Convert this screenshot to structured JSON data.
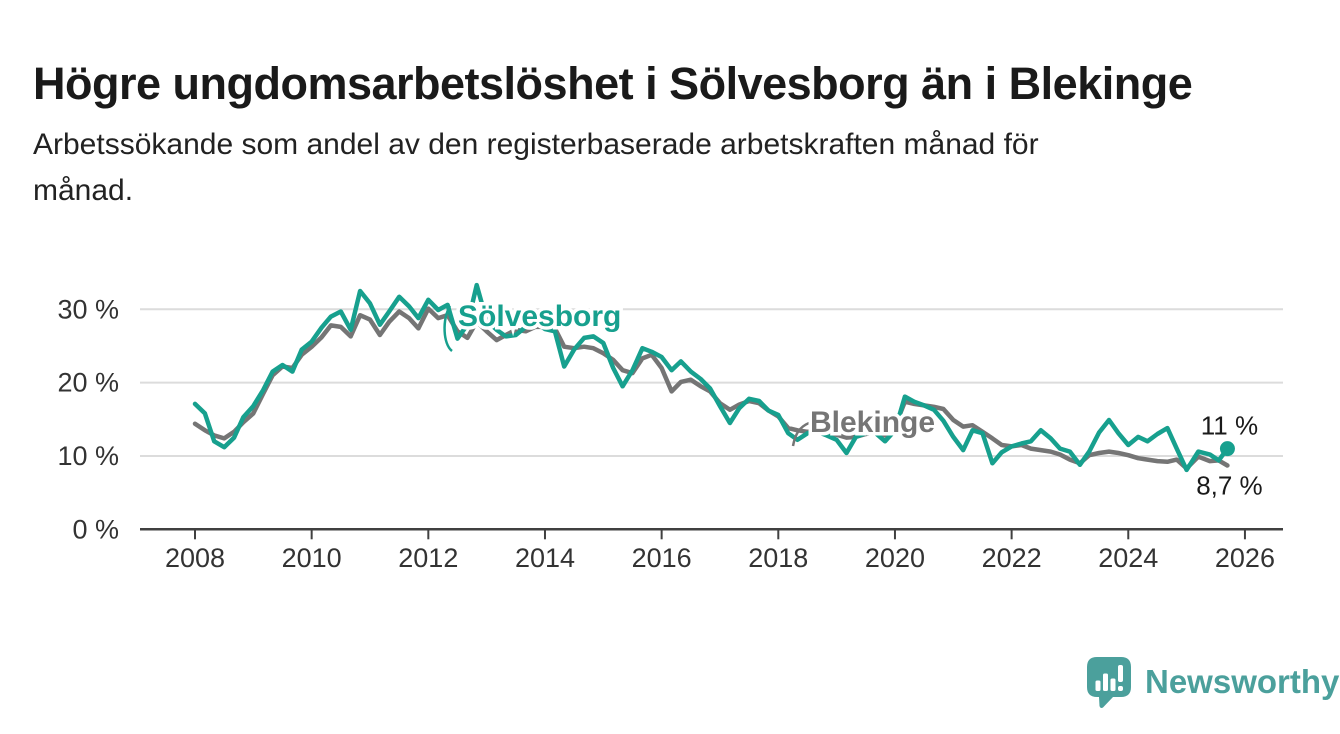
{
  "header": {
    "title": "Högre ungdomsarbetslöshet i Sölvesborg än i Blekinge",
    "subtitle_line1": "Arbetssökande som andel av den registerbaserade arbetskraften månad för",
    "subtitle_line2": "månad."
  },
  "chart": {
    "y_axis": {
      "tick_labels": [
        "30 %",
        "20 %",
        "10 %",
        "0 %"
      ],
      "tick_values": [
        30,
        20,
        10,
        0
      ]
    },
    "x_axis": {
      "tick_labels": [
        "2008",
        "2010",
        "2012",
        "2014",
        "2016",
        "2018",
        "2020",
        "2022",
        "2024",
        "2026"
      ],
      "tick_values": [
        2008,
        2010,
        2012,
        2014,
        2016,
        2018,
        2020,
        2022,
        2024,
        2026
      ]
    },
    "colors": {
      "solvesborg": "#17a08e",
      "blekinge": "#757575",
      "grid": "#dcdcdc",
      "axis": "#404040",
      "tick_text": "#333333",
      "annotation_text": "#1a1a1a"
    }
  },
  "chart_data": {
    "type": "line",
    "title": "Högre ungdomsarbetslöshet i Sölvesborg än i Blekinge",
    "subtitle": "Arbetssökande som andel av den registerbaserade arbetskraften månad för månad.",
    "xlabel": "",
    "ylabel": "",
    "y_unit": "%",
    "ylim": [
      0,
      35
    ],
    "xlim": [
      2007.05,
      2026.65
    ],
    "grid": "horizontal",
    "legend_position": "inline-labels",
    "x": [
      2008.0,
      2008.17,
      2008.33,
      2008.5,
      2008.67,
      2008.83,
      2009.0,
      2009.17,
      2009.33,
      2009.5,
      2009.67,
      2009.83,
      2010.0,
      2010.17,
      2010.33,
      2010.5,
      2010.67,
      2010.83,
      2011.0,
      2011.17,
      2011.33,
      2011.5,
      2011.67,
      2011.83,
      2012.0,
      2012.17,
      2012.33,
      2012.5,
      2012.67,
      2012.83,
      2013.0,
      2013.17,
      2013.33,
      2013.5,
      2013.67,
      2013.83,
      2014.0,
      2014.17,
      2014.33,
      2014.5,
      2014.67,
      2014.83,
      2015.0,
      2015.17,
      2015.33,
      2015.5,
      2015.67,
      2015.83,
      2016.0,
      2016.17,
      2016.33,
      2016.5,
      2016.67,
      2016.83,
      2017.0,
      2017.17,
      2017.33,
      2017.5,
      2017.67,
      2017.83,
      2018.0,
      2018.17,
      2018.33,
      2018.5,
      2018.67,
      2018.83,
      2019.0,
      2019.17,
      2019.33,
      2019.5,
      2019.67,
      2019.83,
      2020.0,
      2020.17,
      2020.33,
      2020.5,
      2020.67,
      2020.83,
      2021.0,
      2021.17,
      2021.33,
      2021.5,
      2021.67,
      2021.83,
      2022.0,
      2022.17,
      2022.33,
      2022.5,
      2022.67,
      2022.83,
      2023.0,
      2023.17,
      2023.33,
      2023.5,
      2023.67,
      2023.83,
      2024.0,
      2024.17,
      2024.33,
      2024.5,
      2024.67,
      2024.83,
      2025.0,
      2025.2,
      2025.4,
      2025.55,
      2025.7
    ],
    "series": [
      {
        "name": "Sölvesborg",
        "color": "#17a08e",
        "values": [
          17.1,
          15.8,
          12.0,
          11.2,
          12.5,
          15.3,
          16.8,
          19.0,
          21.5,
          22.4,
          21.5,
          24.5,
          25.6,
          27.5,
          29.0,
          29.7,
          27.2,
          32.5,
          30.8,
          27.9,
          29.7,
          31.7,
          30.4,
          28.8,
          31.3,
          29.9,
          30.6,
          26.0,
          27.9,
          33.3,
          28.5,
          27.2,
          26.3,
          26.5,
          27.6,
          28.3,
          27.3,
          27.0,
          22.2,
          24.5,
          26.1,
          26.3,
          25.4,
          22.0,
          19.5,
          21.7,
          24.7,
          24.2,
          23.5,
          21.7,
          22.9,
          21.5,
          20.5,
          19.2,
          16.8,
          14.5,
          16.5,
          17.8,
          17.5,
          16.2,
          15.6,
          13.1,
          12.2,
          13.1,
          13.3,
          12.8,
          12.2,
          10.4,
          12.6,
          13.1,
          13.1,
          12.0,
          13.5,
          18.1,
          17.4,
          16.9,
          16.3,
          14.8,
          12.6,
          10.8,
          13.5,
          13.1,
          9.0,
          10.5,
          11.3,
          11.7,
          12.0,
          13.5,
          12.4,
          11.0,
          10.6,
          8.8,
          10.6,
          13.2,
          14.9,
          13.1,
          11.5,
          12.6,
          12.0,
          13.0,
          13.8,
          11.0,
          8.1,
          10.6,
          10.2,
          9.4,
          11.0
        ]
      },
      {
        "name": "Blekinge",
        "color": "#757575",
        "values": [
          14.4,
          13.5,
          12.8,
          12.4,
          13.3,
          14.6,
          15.8,
          18.5,
          21.0,
          22.2,
          22.0,
          23.8,
          24.9,
          26.2,
          27.8,
          27.6,
          26.3,
          29.2,
          28.6,
          26.5,
          28.3,
          29.7,
          28.8,
          27.4,
          30.1,
          28.8,
          29.2,
          27.0,
          26.1,
          28.3,
          27.0,
          25.8,
          26.5,
          27.2,
          27.0,
          27.6,
          27.6,
          27.4,
          24.9,
          24.7,
          24.9,
          24.7,
          24.0,
          23.1,
          21.7,
          21.3,
          23.3,
          23.8,
          22.0,
          18.8,
          20.1,
          20.4,
          19.5,
          18.8,
          17.2,
          16.3,
          17.0,
          17.5,
          17.2,
          16.2,
          15.4,
          13.8,
          13.5,
          13.3,
          13.5,
          13.0,
          12.9,
          12.5,
          12.6,
          13.0,
          13.3,
          12.8,
          14.0,
          17.4,
          17.1,
          16.9,
          16.7,
          16.4,
          14.9,
          14.0,
          14.2,
          13.3,
          12.4,
          11.5,
          11.3,
          11.5,
          11.0,
          10.8,
          10.6,
          10.2,
          9.5,
          9.0,
          10.1,
          10.4,
          10.6,
          10.4,
          10.1,
          9.7,
          9.5,
          9.3,
          9.2,
          9.5,
          8.3,
          9.9,
          9.3,
          9.4,
          8.7
        ]
      }
    ],
    "annotations": [
      {
        "series": "Sölvesborg",
        "text": "11 %",
        "value": 11,
        "marker": true
      },
      {
        "series": "Blekinge",
        "text": "8,7 %",
        "value": 8.7,
        "marker": false
      }
    ]
  },
  "footer": {
    "brand": "Newsworthy"
  }
}
